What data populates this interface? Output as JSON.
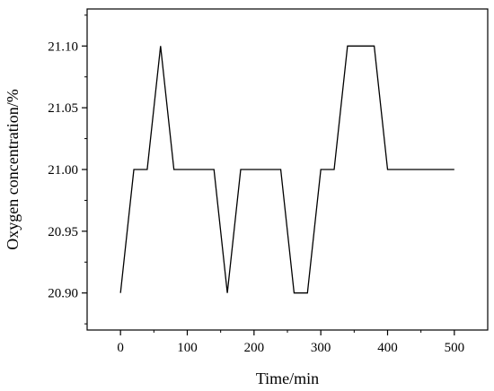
{
  "chart_data": {
    "type": "line",
    "title": "",
    "xlabel": "Time/min",
    "ylabel": "Oxygen concentration/%",
    "xlim": [
      -50,
      550
    ],
    "ylim": [
      20.87,
      21.13
    ],
    "x_ticks": [
      0,
      100,
      200,
      300,
      400,
      500
    ],
    "x_tick_labels": [
      "0",
      "100",
      "200",
      "300",
      "400",
      "500"
    ],
    "y_ticks": [
      20.9,
      20.95,
      21.0,
      21.05,
      21.1
    ],
    "y_tick_labels": [
      "20.90",
      "20.95",
      "21.00",
      "21.05",
      "21.10"
    ],
    "grid": false,
    "legend": "none",
    "line_color": "#000000",
    "series": [
      {
        "x": [
          0,
          20,
          40,
          60,
          80,
          100,
          120,
          140,
          160,
          180,
          200,
          220,
          240,
          260,
          280,
          300,
          320,
          340,
          360,
          380,
          400,
          420,
          440,
          460,
          480,
          500
        ],
        "values": [
          20.9,
          21.0,
          21.0,
          21.1,
          21.0,
          21.0,
          21.0,
          21.0,
          20.9,
          21.0,
          21.0,
          21.0,
          21.0,
          20.9,
          20.9,
          21.0,
          21.0,
          21.1,
          21.1,
          21.1,
          21.0,
          21.0,
          21.0,
          21.0,
          21.0,
          21.0
        ]
      }
    ]
  }
}
